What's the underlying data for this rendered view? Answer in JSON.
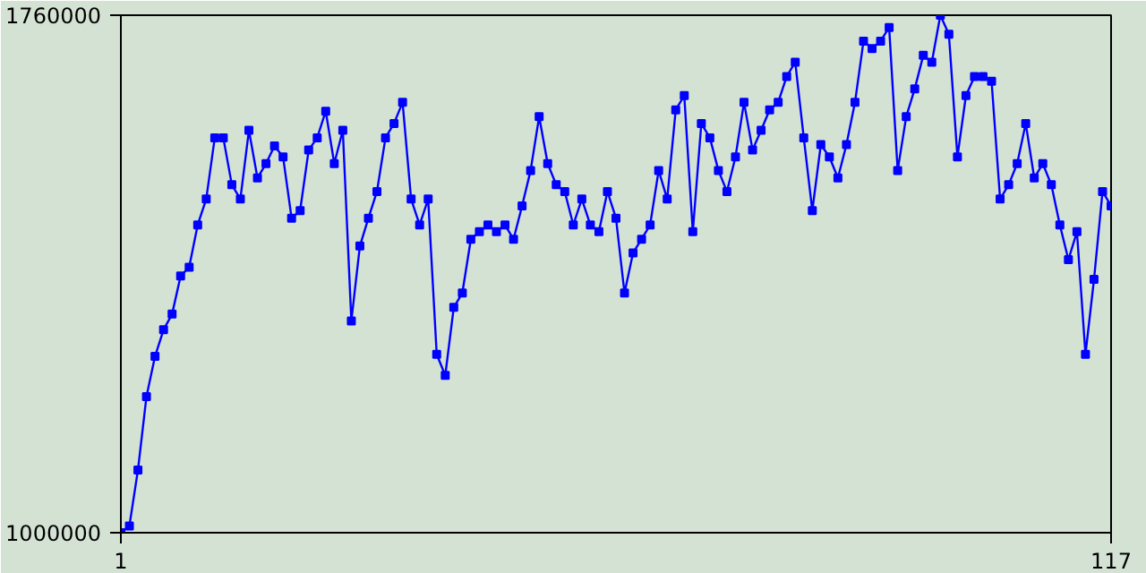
{
  "chart_data": {
    "type": "line",
    "marker": "square",
    "line_style": "solid",
    "x": [
      1,
      2,
      3,
      4,
      5,
      6,
      7,
      8,
      9,
      10,
      11,
      12,
      13,
      14,
      15,
      16,
      17,
      18,
      19,
      20,
      21,
      22,
      23,
      24,
      25,
      26,
      27,
      28,
      29,
      30,
      31,
      32,
      33,
      34,
      35,
      36,
      37,
      38,
      39,
      40,
      41,
      42,
      43,
      44,
      45,
      46,
      47,
      48,
      49,
      50,
      51,
      52,
      53,
      54,
      55,
      56,
      57,
      58,
      59,
      60,
      61,
      62,
      63,
      64,
      65,
      66,
      67,
      68,
      69,
      70,
      71,
      72,
      73,
      74,
      75,
      76,
      77,
      78,
      79,
      80,
      81,
      82,
      83,
      84,
      85,
      86,
      87,
      88,
      89,
      90,
      91,
      92,
      93,
      94,
      95,
      96,
      97,
      98,
      99,
      100,
      101,
      102,
      103,
      104,
      105,
      106,
      107,
      108,
      109,
      110,
      111,
      112,
      113,
      114,
      115,
      116,
      117
    ],
    "series": [
      {
        "color": "#0000ff",
        "values": [
          1000000,
          1010000,
          1092000,
          1200000,
          1259000,
          1298000,
          1321000,
          1377000,
          1390000,
          1452000,
          1490000,
          1580000,
          1580000,
          1511000,
          1490000,
          1591000,
          1521000,
          1542000,
          1568000,
          1552000,
          1462000,
          1473000,
          1562000,
          1580000,
          1619000,
          1542000,
          1591000,
          1311000,
          1421000,
          1462000,
          1501000,
          1580000,
          1601000,
          1632000,
          1490000,
          1452000,
          1490000,
          1262000,
          1231000,
          1331000,
          1352000,
          1431000,
          1442000,
          1452000,
          1442000,
          1452000,
          1431000,
          1480000,
          1532000,
          1611000,
          1542000,
          1511000,
          1501000,
          1452000,
          1490000,
          1452000,
          1442000,
          1501000,
          1462000,
          1352000,
          1411000,
          1431000,
          1452000,
          1532000,
          1490000,
          1621000,
          1642000,
          1442000,
          1601000,
          1580000,
          1532000,
          1501000,
          1552000,
          1632000,
          1562000,
          1591000,
          1621000,
          1632000,
          1670000,
          1691000,
          1580000,
          1473000,
          1570000,
          1552000,
          1521000,
          1570000,
          1632000,
          1722000,
          1711000,
          1722000,
          1742000,
          1532000,
          1611000,
          1652000,
          1701000,
          1691000,
          1760000,
          1732000,
          1552000,
          1642000,
          1670000,
          1670000,
          1663000,
          1490000,
          1511000,
          1542000,
          1601000,
          1521000,
          1542000,
          1511000,
          1452000,
          1401000,
          1442000,
          1262000,
          1372000,
          1501000,
          1480000
        ]
      }
    ],
    "xlim": [
      1,
      117
    ],
    "ylim": [
      1000000,
      1760000
    ],
    "xticks": [
      1,
      117
    ],
    "yticks": [
      1000000,
      1760000
    ]
  }
}
